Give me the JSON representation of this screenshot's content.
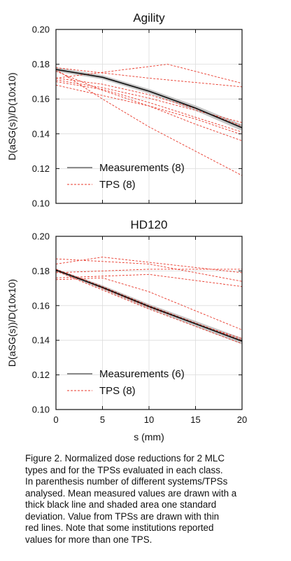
{
  "chart_data": [
    {
      "type": "line",
      "title": "Agility",
      "xlabel": "",
      "ylabel": "D(aSG(s))/D(10x10)",
      "xlim": [
        0,
        20
      ],
      "ylim": [
        0.1,
        0.2
      ],
      "xticks": [
        0,
        5,
        10,
        15,
        20
      ],
      "yticks": [
        0.1,
        0.12,
        0.14,
        0.16,
        0.18,
        0.2
      ],
      "ytick_labels": [
        "0.10",
        "0.12",
        "0.14",
        "0.16",
        "0.18",
        "0.20"
      ],
      "xtick_labels": [],
      "grid": true,
      "legend": {
        "placement": "lower-left",
        "entries": [
          {
            "label": "Measurements (8)",
            "style": "thick-black"
          },
          {
            "label": "TPS (8)",
            "style": "thin-red-dashed"
          }
        ]
      },
      "measurement": {
        "x": [
          0,
          5,
          10,
          15,
          20
        ],
        "mean": [
          0.177,
          0.1725,
          0.1645,
          0.1548,
          0.1435
        ],
        "std": [
          0.0012,
          0.0012,
          0.0013,
          0.0015,
          0.0018
        ]
      },
      "tps_series": [
        {
          "x": [
            0,
            12,
            20
          ],
          "y": [
            0.172,
            0.18,
            0.169
          ]
        },
        {
          "x": [
            0,
            10,
            20
          ],
          "y": [
            0.178,
            0.172,
            0.167
          ]
        },
        {
          "x": [
            0,
            5,
            10,
            15,
            20
          ],
          "y": [
            0.172,
            0.1685,
            0.1625,
            0.1545,
            0.1445
          ]
        },
        {
          "x": [
            0,
            5,
            10,
            15,
            20
          ],
          "y": [
            0.171,
            0.1665,
            0.1605,
            0.1535,
            0.1465
          ]
        },
        {
          "x": [
            0,
            5,
            10,
            15,
            20
          ],
          "y": [
            0.17,
            0.1655,
            0.158,
            0.1495,
            0.141
          ]
        },
        {
          "x": [
            0,
            5,
            10,
            15,
            20
          ],
          "y": [
            0.168,
            0.162,
            0.156,
            0.1485,
            0.1395
          ]
        },
        {
          "x": [
            0,
            5,
            10,
            15,
            20
          ],
          "y": [
            0.176,
            0.165,
            0.156,
            0.1455,
            0.136
          ]
        },
        {
          "x": [
            0,
            5,
            10,
            15,
            20
          ],
          "y": [
            0.177,
            0.16,
            0.144,
            0.13,
            0.116
          ]
        }
      ],
      "colors": {
        "measurement": "#111111",
        "band": "#b8b8b8",
        "tps": "#e8392b"
      }
    },
    {
      "type": "line",
      "title": "HD120",
      "xlabel": "s (mm)",
      "ylabel": "D(aSG(s))/D(10x10)",
      "xlim": [
        0,
        20
      ],
      "ylim": [
        0.1,
        0.2
      ],
      "xticks": [
        0,
        5,
        10,
        15,
        20
      ],
      "yticks": [
        0.1,
        0.12,
        0.14,
        0.16,
        0.18,
        0.2
      ],
      "ytick_labels": [
        "0.10",
        "0.12",
        "0.14",
        "0.16",
        "0.18",
        "0.20"
      ],
      "xtick_labels": [
        "0",
        "5",
        "10",
        "15",
        "20"
      ],
      "grid": true,
      "legend": {
        "placement": "lower-left",
        "entries": [
          {
            "label": "Measurements (6)",
            "style": "thick-black"
          },
          {
            "label": "TPS (8)",
            "style": "thin-red-dashed"
          }
        ]
      },
      "measurement": {
        "x": [
          0,
          5,
          10,
          15,
          20
        ],
        "mean": [
          0.1805,
          0.1705,
          0.1595,
          0.1495,
          0.1395
        ],
        "std": [
          0.0008,
          0.0012,
          0.0014,
          0.0016,
          0.0018
        ]
      },
      "tps_series": [
        {
          "x": [
            0,
            5,
            20
          ],
          "y": [
            0.184,
            0.188,
            0.179
          ]
        },
        {
          "x": [
            0,
            10,
            20
          ],
          "y": [
            0.179,
            0.181,
            0.181
          ]
        },
        {
          "x": [
            0,
            10,
            20
          ],
          "y": [
            0.187,
            0.184,
            0.174
          ]
        },
        {
          "x": [
            0,
            10,
            20
          ],
          "y": [
            0.176,
            0.178,
            0.171
          ]
        },
        {
          "x": [
            0,
            5,
            10,
            15,
            20
          ],
          "y": [
            0.175,
            0.176,
            0.168,
            0.157,
            0.146
          ]
        },
        {
          "x": [
            0,
            5,
            10,
            15,
            20
          ],
          "y": [
            0.181,
            0.171,
            0.16,
            0.15,
            0.14
          ]
        },
        {
          "x": [
            0,
            5,
            10,
            15,
            20
          ],
          "y": [
            0.18,
            0.169,
            0.158,
            0.148,
            0.138
          ]
        },
        {
          "x": [
            0,
            5,
            10,
            15,
            20
          ],
          "y": [
            0.181,
            0.17,
            0.159,
            0.1495,
            0.141
          ]
        }
      ],
      "colors": {
        "measurement": "#111111",
        "band": "#b8b8b8",
        "tps": "#e8392b"
      }
    }
  ],
  "caption": {
    "lines": [
      "Figure 2. Normalized dose reductions for 2 MLC",
      "types and for the TPSs evaluated in each class.",
      "In parenthesis number of different systems/TPSs",
      "analysed. Mean measured values are drawn with a",
      "thick black line and shaded area one standard",
      "deviation. Value from TPSs are drawn with thin",
      "red lines. Note that some institutions reported",
      "values for more than one TPS."
    ]
  }
}
